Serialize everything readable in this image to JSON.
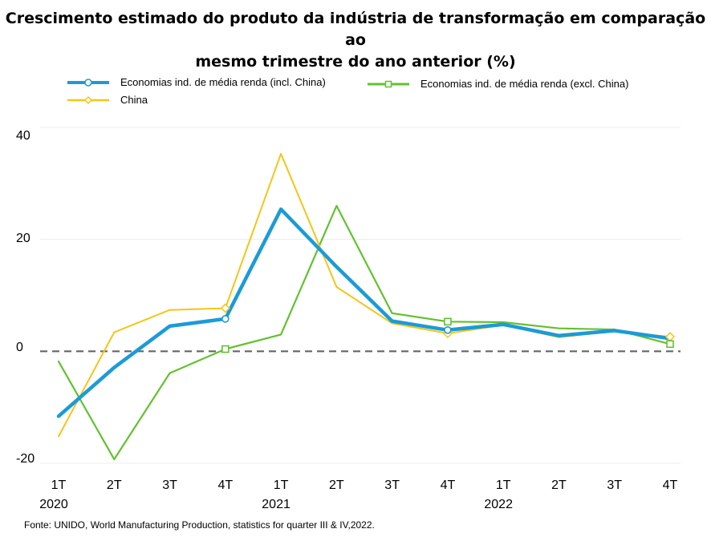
{
  "title_line1": "Crescimento estimado do produto da indústria de transformação em comparação ao",
  "title_line2": "mesmo trimestre do ano anterior (%)",
  "source": "Fonte: UNIDO, World Manufacturing Production, statistics for quarter III & IV,2022.",
  "chart_data": {
    "type": "line",
    "categories": [
      "1T 2020",
      "2T 2020",
      "3T 2020",
      "4T 2020",
      "1T 2021",
      "2T 2021",
      "3T 2021",
      "4T 2021",
      "1T 2022",
      "2T 2022",
      "3T 2022",
      "4T 2022"
    ],
    "x_tick_labels": [
      "1T",
      "2T",
      "3T",
      "4T",
      "1T",
      "2T",
      "3T",
      "4T",
      "1T",
      "2T",
      "3T",
      "4T"
    ],
    "year_labels": [
      "2020",
      "2021",
      "2022"
    ],
    "y_ticks": [
      "40",
      "20",
      "0",
      "-20"
    ],
    "ylim": [
      -20,
      40
    ],
    "reference_line": 0,
    "legend_position": "top",
    "series": [
      {
        "name": "Economias ind. de média renda (incl. China)",
        "color": "#1b9bd7",
        "values": [
          -11.6,
          -2.9,
          4.5,
          5.8,
          25.4,
          15.1,
          5.4,
          3.8,
          4.8,
          2.8,
          3.7,
          2.3
        ]
      },
      {
        "name": "China",
        "color": "#f5c518",
        "values": [
          -15.2,
          3.4,
          7.4,
          7.7,
          35.3,
          11.5,
          5.0,
          3.2,
          4.7,
          2.5,
          3.6,
          2.6
        ]
      },
      {
        "name": "Economias ind. de média renda (excl. China)",
        "color": "#63c130",
        "values": [
          -1.8,
          -19.3,
          -3.9,
          0.4,
          3.0,
          26.0,
          6.8,
          5.3,
          5.2,
          4.1,
          3.9,
          1.3
        ]
      }
    ]
  }
}
